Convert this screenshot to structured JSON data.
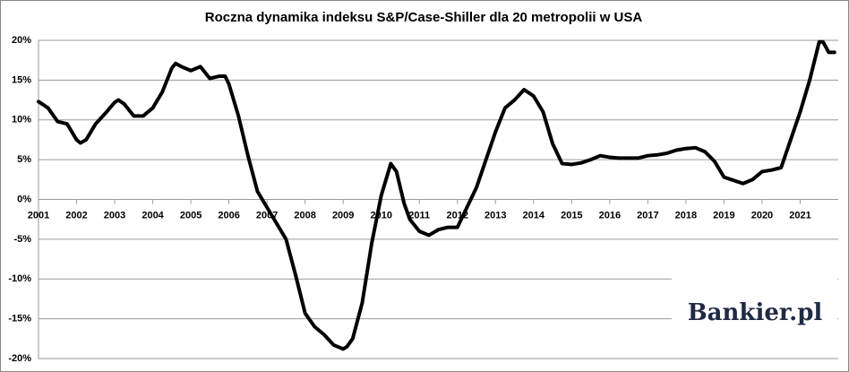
{
  "chart_data": {
    "type": "line",
    "title": "Roczna dynamika indeksu S&P/Case-Shiller dla 20 metropolii w USA",
    "logo": "Bankier.pl",
    "x": [
      2001.0,
      2001.25,
      2001.5,
      2001.75,
      2002.0,
      2002.1,
      2002.25,
      2002.5,
      2002.75,
      2003.0,
      2003.1,
      2003.25,
      2003.5,
      2003.75,
      2004.0,
      2004.25,
      2004.5,
      2004.6,
      2004.75,
      2005.0,
      2005.25,
      2005.5,
      2005.75,
      2005.9,
      2006.0,
      2006.25,
      2006.5,
      2006.75,
      2007.0,
      2007.25,
      2007.5,
      2007.75,
      2008.0,
      2008.25,
      2008.5,
      2008.75,
      2009.0,
      2009.1,
      2009.25,
      2009.5,
      2009.75,
      2010.0,
      2010.25,
      2010.4,
      2010.6,
      2010.75,
      2011.0,
      2011.25,
      2011.5,
      2011.75,
      2012.0,
      2012.25,
      2012.5,
      2012.75,
      2013.0,
      2013.25,
      2013.5,
      2013.75,
      2014.0,
      2014.25,
      2014.5,
      2014.75,
      2015.0,
      2015.25,
      2015.5,
      2015.75,
      2016.0,
      2016.25,
      2016.5,
      2016.75,
      2017.0,
      2017.25,
      2017.5,
      2017.75,
      2018.0,
      2018.25,
      2018.5,
      2018.75,
      2019.0,
      2019.25,
      2019.5,
      2019.75,
      2020.0,
      2020.25,
      2020.5,
      2020.75,
      2021.0,
      2021.25,
      2021.5,
      2021.6,
      2021.75,
      2021.9
    ],
    "series": [
      {
        "name": "S&P/Case-Shiller 20",
        "color": "#000000",
        "values": [
          12.3,
          11.5,
          9.8,
          9.5,
          7.5,
          7.1,
          7.5,
          9.5,
          10.8,
          12.2,
          12.5,
          12.0,
          10.5,
          10.5,
          11.5,
          13.5,
          16.5,
          17.1,
          16.7,
          16.2,
          16.7,
          15.2,
          15.5,
          15.5,
          14.5,
          10.5,
          5.5,
          1.0,
          -1.0,
          -3.0,
          -5.0,
          -9.5,
          -14.3,
          -16.0,
          -17.0,
          -18.3,
          -18.8,
          -18.5,
          -17.5,
          -13.0,
          -5.5,
          0.5,
          4.5,
          3.5,
          -0.5,
          -2.5,
          -4.0,
          -4.5,
          -3.8,
          -3.5,
          -3.5,
          -1.0,
          1.5,
          5.0,
          8.5,
          11.5,
          12.5,
          13.8,
          13.0,
          11.0,
          7.0,
          4.5,
          4.4,
          4.6,
          5.0,
          5.5,
          5.3,
          5.2,
          5.2,
          5.2,
          5.5,
          5.6,
          5.8,
          6.2,
          6.4,
          6.5,
          6.0,
          4.8,
          2.8,
          2.4,
          2.0,
          2.5,
          3.5,
          3.7,
          4.0,
          7.5,
          11.0,
          15.0,
          19.8,
          19.8,
          18.5,
          18.5
        ]
      }
    ],
    "xlim": [
      2001,
      2022
    ],
    "xticks": [
      2001,
      2002,
      2003,
      2004,
      2005,
      2006,
      2007,
      2008,
      2009,
      2010,
      2011,
      2012,
      2013,
      2014,
      2015,
      2016,
      2017,
      2018,
      2019,
      2020,
      2021
    ],
    "ylim": [
      -20,
      20
    ],
    "yticks": [
      {
        "value": -20,
        "label": "-20%"
      },
      {
        "value": -15,
        "label": "-15%"
      },
      {
        "value": -10,
        "label": "-10%"
      },
      {
        "value": -5,
        "label": "-5%"
      },
      {
        "value": 0,
        "label": "0%"
      },
      {
        "value": 5,
        "label": "5%"
      },
      {
        "value": 10,
        "label": "10%"
      },
      {
        "value": 15,
        "label": "15%"
      },
      {
        "value": 20,
        "label": "20%"
      }
    ],
    "grid": true
  }
}
